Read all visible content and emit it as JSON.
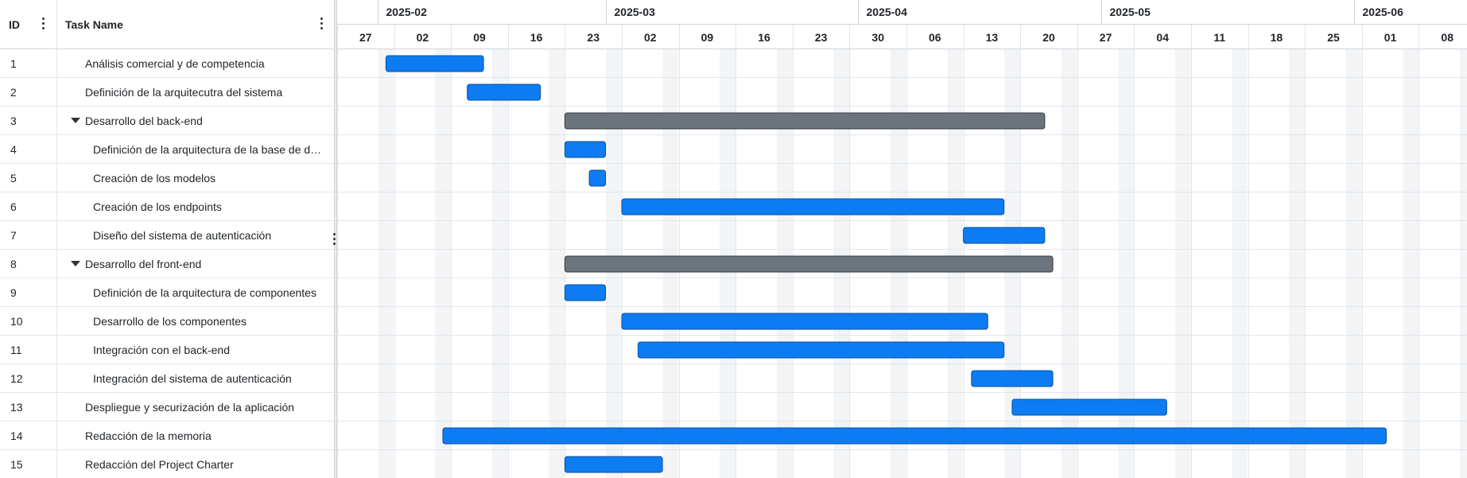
{
  "columns": {
    "id": "ID",
    "name": "Task Name"
  },
  "months": [
    "2025-02",
    "2025-03",
    "2025-04",
    "2025-05",
    "2025-06"
  ],
  "weeks": [
    "27",
    "02",
    "09",
    "16",
    "23",
    "02",
    "09",
    "16",
    "23",
    "30",
    "06",
    "13",
    "20",
    "27",
    "04",
    "11",
    "18",
    "25",
    "01",
    "08"
  ],
  "colors": {
    "task": "#0d7cf2",
    "summary": "#6c757d",
    "grid": "#e3e6ea",
    "weekend": "#f2f4f6"
  },
  "tasks": [
    {
      "id": "1",
      "name": "Análisis comercial y de competencia",
      "type": "task",
      "level": 1,
      "start": "2025-02-02",
      "end": "2025-02-13"
    },
    {
      "id": "2",
      "name": "Definición de la arquitecutra del sistema",
      "type": "task",
      "level": 1,
      "start": "2025-02-12",
      "end": "2025-02-20"
    },
    {
      "id": "3",
      "name": "Desarrollo del back-end",
      "type": "summary",
      "level": 1,
      "start": "2025-02-24",
      "end": "2025-04-23"
    },
    {
      "id": "4",
      "name": "Definición de la arquitectura de la base de d…",
      "type": "task",
      "level": 2,
      "start": "2025-02-24",
      "end": "2025-02-28"
    },
    {
      "id": "5",
      "name": "Creación de los modelos",
      "type": "task",
      "level": 2,
      "start": "2025-02-27",
      "end": "2025-02-28"
    },
    {
      "id": "6",
      "name": "Creación de los endpoints",
      "type": "task",
      "level": 2,
      "start": "2025-03-03",
      "end": "2025-04-18"
    },
    {
      "id": "7",
      "name": "Diseño del sistema de autenticación",
      "type": "task",
      "level": 2,
      "start": "2025-04-14",
      "end": "2025-04-23"
    },
    {
      "id": "8",
      "name": "Desarrollo del front-end",
      "type": "summary",
      "level": 1,
      "start": "2025-02-24",
      "end": "2025-04-24"
    },
    {
      "id": "9",
      "name": "Definición de la arquitectura de componentes",
      "type": "task",
      "level": 2,
      "start": "2025-02-24",
      "end": "2025-02-28"
    },
    {
      "id": "10",
      "name": "Desarrollo de los componentes",
      "type": "task",
      "level": 2,
      "start": "2025-03-03",
      "end": "2025-04-16"
    },
    {
      "id": "11",
      "name": "Integración con el back-end",
      "type": "task",
      "level": 2,
      "start": "2025-03-05",
      "end": "2025-04-18"
    },
    {
      "id": "12",
      "name": "Integración del sistema de autenticación",
      "type": "task",
      "level": 2,
      "start": "2025-04-15",
      "end": "2025-04-24"
    },
    {
      "id": "13",
      "name": "Despliegue y securización de la aplicación",
      "type": "task",
      "level": 1,
      "start": "2025-04-20",
      "end": "2025-05-08"
    },
    {
      "id": "14",
      "name": "Redacción de la memoria",
      "type": "task",
      "level": 1,
      "start": "2025-02-09",
      "end": "2025-06-04"
    },
    {
      "id": "15",
      "name": "Redacción del Project Charter",
      "type": "task",
      "level": 1,
      "start": "2025-02-24",
      "end": "2025-03-07"
    }
  ]
}
